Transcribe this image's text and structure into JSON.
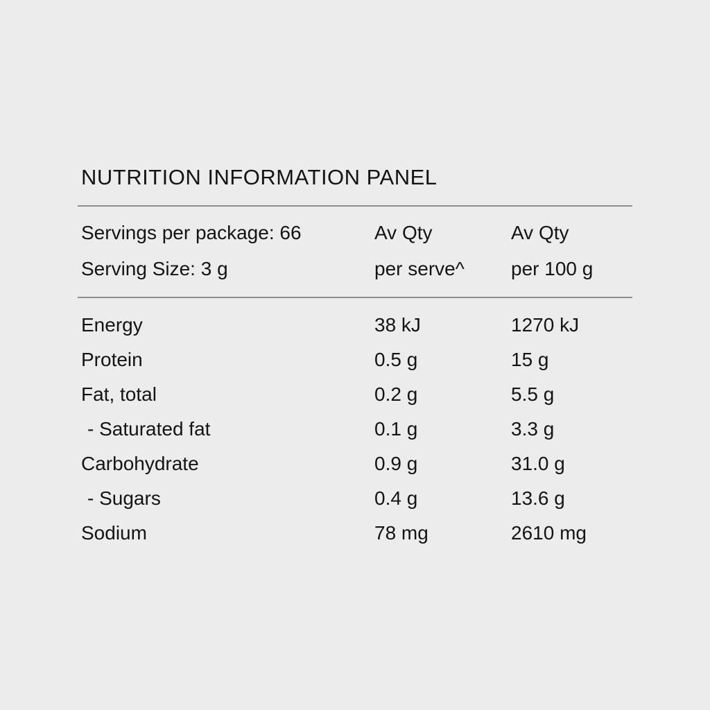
{
  "panel": {
    "title": "NUTRITION INFORMATION PANEL",
    "header": {
      "servings_line": "Servings per package: 66",
      "serving_size_line": "Serving Size: 3 g",
      "per_serve_qty": "Av Qty",
      "per_serve_unit": "per serve^",
      "per_100g_qty": "Av Qty",
      "per_100g_unit": "per 100 g"
    },
    "rows": [
      {
        "nutrient": "Energy",
        "per_serve": "38 kJ",
        "per_100g": "1270 kJ",
        "indent": false
      },
      {
        "nutrient": "Protein",
        "per_serve": "0.5 g",
        "per_100g": "15 g",
        "indent": false
      },
      {
        "nutrient": "Fat, total",
        "per_serve": "0.2 g",
        "per_100g": "5.5 g",
        "indent": false
      },
      {
        "nutrient": "- Saturated fat",
        "per_serve": "0.1 g",
        "per_100g": "3.3 g",
        "indent": true
      },
      {
        "nutrient": "Carbohydrate",
        "per_serve": "0.9 g",
        "per_100g": "31.0 g",
        "indent": false
      },
      {
        "nutrient": "- Sugars",
        "per_serve": "0.4 g",
        "per_100g": "13.6 g",
        "indent": true
      },
      {
        "nutrient": "Sodium",
        "per_serve": "78 mg",
        "per_100g": "2610 mg",
        "indent": false
      }
    ],
    "colors": {
      "background": "#ececec",
      "text": "#141414",
      "divider": "#8f8f8f"
    }
  }
}
